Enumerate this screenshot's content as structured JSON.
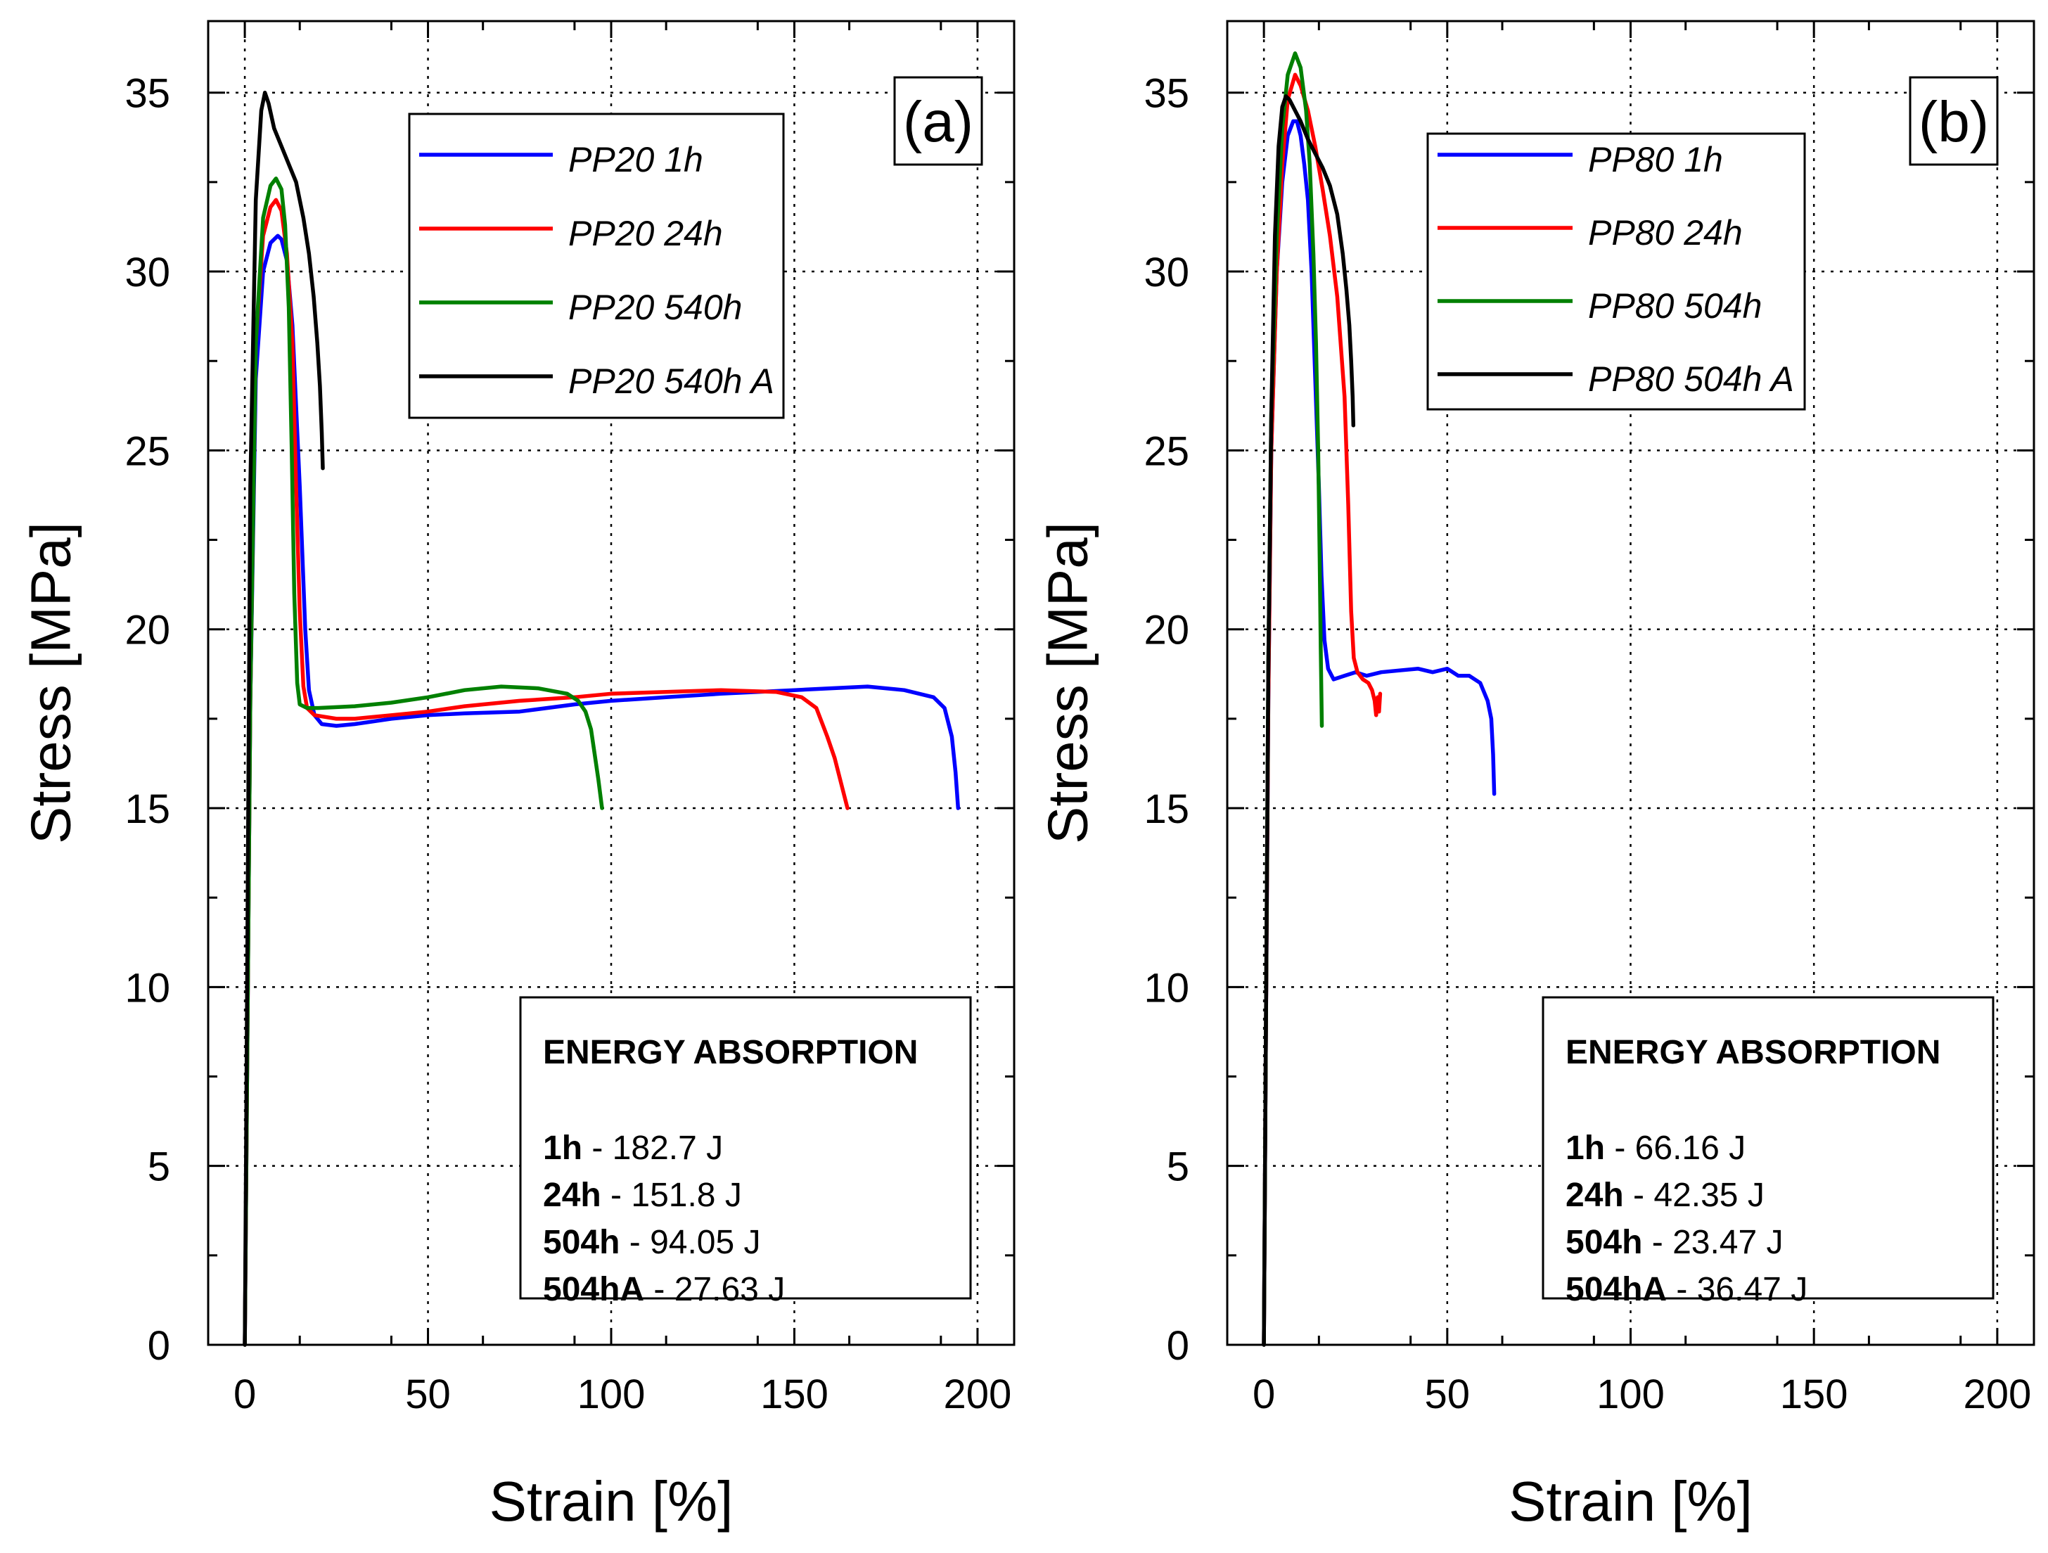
{
  "chart_data": [
    {
      "type": "line",
      "panel_label": "(a)",
      "xlabel": "Strain [%]",
      "ylabel": "Stress [MPa]",
      "xlim": [
        -10,
        210
      ],
      "ylim": [
        0,
        37
      ],
      "xticks": [
        0,
        50,
        100,
        150,
        200
      ],
      "yticks": [
        0,
        5,
        10,
        15,
        20,
        25,
        30,
        35
      ],
      "grid": true,
      "legend_position": "top-center",
      "series": [
        {
          "name": "PP20 1h",
          "color": "#0000ff",
          "x": [
            0,
            0.5,
            1.5,
            3,
            5,
            7,
            9,
            10,
            11.5,
            13,
            15,
            16.5,
            17.5,
            19,
            21,
            25,
            30,
            40,
            50,
            60,
            75,
            90,
            100,
            115,
            130,
            150,
            160,
            170,
            180,
            188,
            191,
            193,
            194,
            194.7
          ],
          "y": [
            0,
            6,
            18,
            27,
            30,
            30.8,
            31,
            30.9,
            30.3,
            28.5,
            24,
            20,
            18.3,
            17.6,
            17.35,
            17.3,
            17.35,
            17.5,
            17.6,
            17.65,
            17.7,
            17.9,
            18.0,
            18.1,
            18.2,
            18.3,
            18.35,
            18.4,
            18.3,
            18.1,
            17.8,
            17.0,
            16.0,
            15.0
          ]
        },
        {
          "name": "PP20 24h",
          "color": "#ff0000",
          "x": [
            0,
            0.5,
            1.5,
            3,
            5,
            7,
            8.5,
            10,
            11.5,
            13,
            14,
            15,
            16,
            17,
            19,
            25,
            30,
            40,
            50,
            60,
            75,
            90,
            100,
            115,
            130,
            145,
            152,
            156,
            159,
            161,
            163,
            164.5
          ],
          "y": [
            0,
            6,
            18,
            28,
            31,
            31.8,
            32,
            31.7,
            30.5,
            28,
            24,
            20.5,
            18.4,
            17.8,
            17.6,
            17.5,
            17.5,
            17.6,
            17.7,
            17.85,
            18.0,
            18.1,
            18.2,
            18.25,
            18.3,
            18.25,
            18.1,
            17.8,
            17.0,
            16.4,
            15.6,
            15.0
          ]
        },
        {
          "name": "PP20 540h",
          "color": "#008000",
          "x": [
            0,
            0.5,
            1.5,
            3,
            5,
            7,
            8.5,
            10,
            11,
            12,
            12.8,
            13.5,
            14.3,
            15,
            17,
            20,
            30,
            40,
            50,
            60,
            70,
            80,
            88,
            91,
            93,
            94.5,
            95.5,
            96.5,
            97.5
          ],
          "y": [
            0,
            6,
            18,
            28,
            31.5,
            32.4,
            32.6,
            32.3,
            31.3,
            29,
            25,
            21,
            18.5,
            17.9,
            17.8,
            17.8,
            17.85,
            17.95,
            18.1,
            18.3,
            18.4,
            18.35,
            18.2,
            18.0,
            17.7,
            17.2,
            16.5,
            15.8,
            15.0
          ]
        },
        {
          "name": "PP20 540h A",
          "color": "#000000",
          "x": [
            0,
            0.5,
            1.5,
            3,
            4.5,
            5.5,
            6.5,
            8,
            10,
            12,
            14,
            16,
            17.5,
            18.8,
            19.8,
            20.5,
            21,
            21.3
          ],
          "y": [
            0,
            8,
            24,
            32,
            34.5,
            35,
            34.7,
            34,
            33.5,
            33,
            32.5,
            31.5,
            30.5,
            29.3,
            28,
            26.8,
            25.5,
            24.5
          ]
        }
      ],
      "energy_box": {
        "title": "ENERGY ABSORPTION",
        "rows": [
          {
            "key": "1h",
            "value": " - 182.7 J"
          },
          {
            "key": "24h",
            "value": " - 151.8 J"
          },
          {
            "key": "504h",
            "value": " - 94.05 J"
          },
          {
            "key": "504hA",
            "value": " - 27.63 J"
          }
        ]
      }
    },
    {
      "type": "line",
      "panel_label": "(b)",
      "xlabel": "Strain [%]",
      "ylabel": "Stress [MPa]",
      "xlim": [
        -10,
        210
      ],
      "ylim": [
        0,
        37
      ],
      "xticks": [
        0,
        50,
        100,
        150,
        200
      ],
      "yticks": [
        0,
        5,
        10,
        15,
        20,
        25,
        30,
        35
      ],
      "grid": true,
      "legend_position": "top-center",
      "series": [
        {
          "name": "PP80 1h",
          "color": "#0000ff",
          "x": [
            0,
            0.5,
            1.2,
            2,
            3.5,
            5,
            6.5,
            8,
            9,
            10,
            11,
            12,
            13,
            14,
            15,
            15.7,
            16.5,
            17.5,
            19,
            22,
            25,
            28,
            32,
            37,
            42,
            46,
            50,
            53,
            56,
            59,
            61,
            62,
            62.5,
            62.8
          ],
          "y": [
            0,
            8,
            18,
            25,
            30,
            32.5,
            33.8,
            34.2,
            34.2,
            33.8,
            33,
            32,
            30,
            27,
            24,
            21.5,
            19.7,
            18.9,
            18.6,
            18.7,
            18.8,
            18.7,
            18.8,
            18.85,
            18.9,
            18.8,
            18.9,
            18.7,
            18.7,
            18.5,
            18.0,
            17.5,
            16.5,
            15.4
          ]
        },
        {
          "name": "PP80 24h",
          "color": "#ff0000",
          "x": [
            0,
            0.5,
            1.2,
            2,
            3.5,
            5,
            6.5,
            8.5,
            10,
            12,
            14,
            16,
            18,
            20,
            22,
            23,
            23.8,
            24.5,
            25.5,
            27,
            28.5,
            29.5,
            30.2,
            30.6,
            31,
            31.4,
            31.7
          ],
          "y": [
            0,
            8,
            18,
            25,
            30,
            33,
            34.8,
            35.5,
            35.2,
            34.5,
            33.5,
            32.3,
            31,
            29.3,
            26.5,
            23.5,
            20.5,
            19.2,
            18.8,
            18.6,
            18.5,
            18.3,
            18.0,
            17.6,
            18.1,
            17.7,
            18.2
          ]
        },
        {
          "name": "PP80 504h",
          "color": "#008000",
          "x": [
            0,
            0.5,
            1.2,
            2,
            3.5,
            5,
            6.5,
            8.5,
            10,
            11.5,
            12.5,
            13.5,
            14.2,
            14.8,
            15.2,
            15.5,
            15.7,
            15.8
          ],
          "y": [
            0,
            8,
            19,
            26,
            31,
            34,
            35.5,
            36.1,
            35.7,
            34.5,
            33,
            30.5,
            28,
            25,
            22,
            19.5,
            18,
            17.3
          ]
        },
        {
          "name": "PP80 504h A",
          "color": "#000000",
          "x": [
            0,
            0.5,
            1.2,
            2,
            3,
            4,
            5,
            6,
            7,
            8.5,
            10,
            12,
            14,
            16,
            18,
            20,
            21.5,
            22.5,
            23.3,
            23.8,
            24.2,
            24.4
          ],
          "y": [
            0,
            8,
            19,
            26,
            31,
            33.5,
            34.6,
            34.9,
            34.8,
            34.5,
            34.2,
            33.7,
            33.3,
            32.9,
            32.4,
            31.6,
            30.5,
            29.5,
            28.5,
            27.5,
            26.5,
            25.7
          ]
        }
      ],
      "energy_box": {
        "title": "ENERGY ABSORPTION",
        "rows": [
          {
            "key": "1h",
            "value": " - 66.16 J"
          },
          {
            "key": "24h",
            "value": " - 42.35 J"
          },
          {
            "key": "504h",
            "value": " - 23.47 J"
          },
          {
            "key": "504hA",
            "value": " - 36.47 J"
          }
        ]
      }
    }
  ]
}
